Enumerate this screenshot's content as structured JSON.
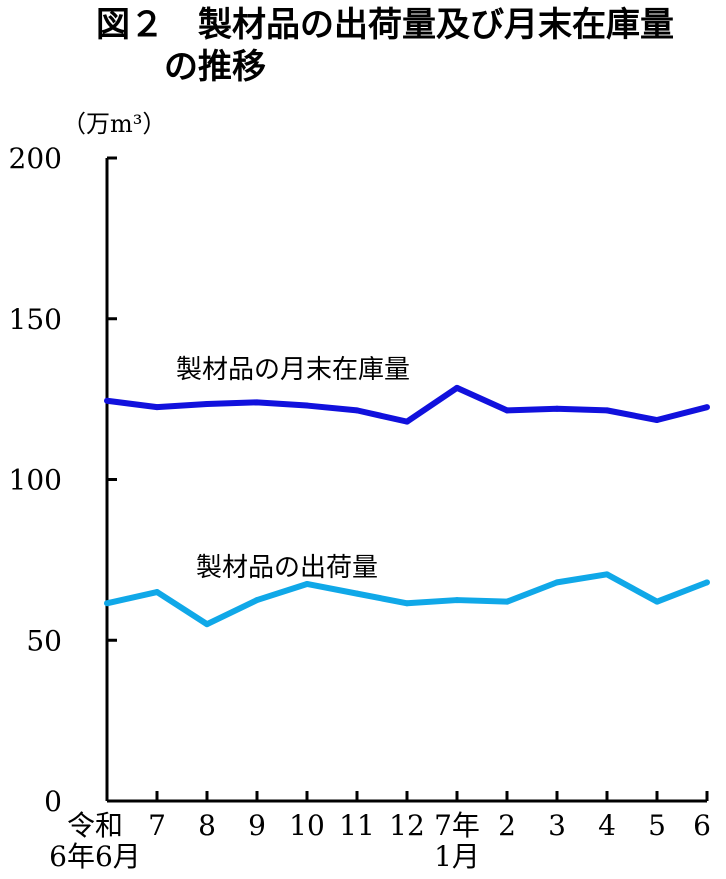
{
  "chart_data": {
    "type": "line",
    "title_line1": "図２　製材品の出荷量及び月末在庫量",
    "title_line2": "の推移",
    "unit_label": "（万m³）",
    "ylim": [
      0,
      200
    ],
    "yticks": [
      "0",
      "50",
      "100",
      "150",
      "200"
    ],
    "categories": [
      [
        "令和",
        "6年6月"
      ],
      [
        "7"
      ],
      [
        "8"
      ],
      [
        "9"
      ],
      [
        "10"
      ],
      [
        "11"
      ],
      [
        "12"
      ],
      [
        "7年",
        "1月"
      ],
      [
        "2"
      ],
      [
        "3"
      ],
      [
        "4"
      ],
      [
        "5"
      ],
      [
        "6"
      ]
    ],
    "series": [
      {
        "name": "製材品の月末在庫量",
        "color": "#1111dd",
        "values": [
          124.5,
          122.5,
          123.5,
          124,
          123,
          121.5,
          118,
          128.5,
          121.5,
          122,
          121.5,
          118.5,
          122.5
        ]
      },
      {
        "name": "製材品の出荷量",
        "color": "#10a8e8",
        "values": [
          61.5,
          65,
          55,
          62.5,
          67.5,
          64.5,
          61.5,
          62.5,
          62,
          68,
          70.5,
          62,
          68
        ]
      }
    ],
    "grid": false
  }
}
